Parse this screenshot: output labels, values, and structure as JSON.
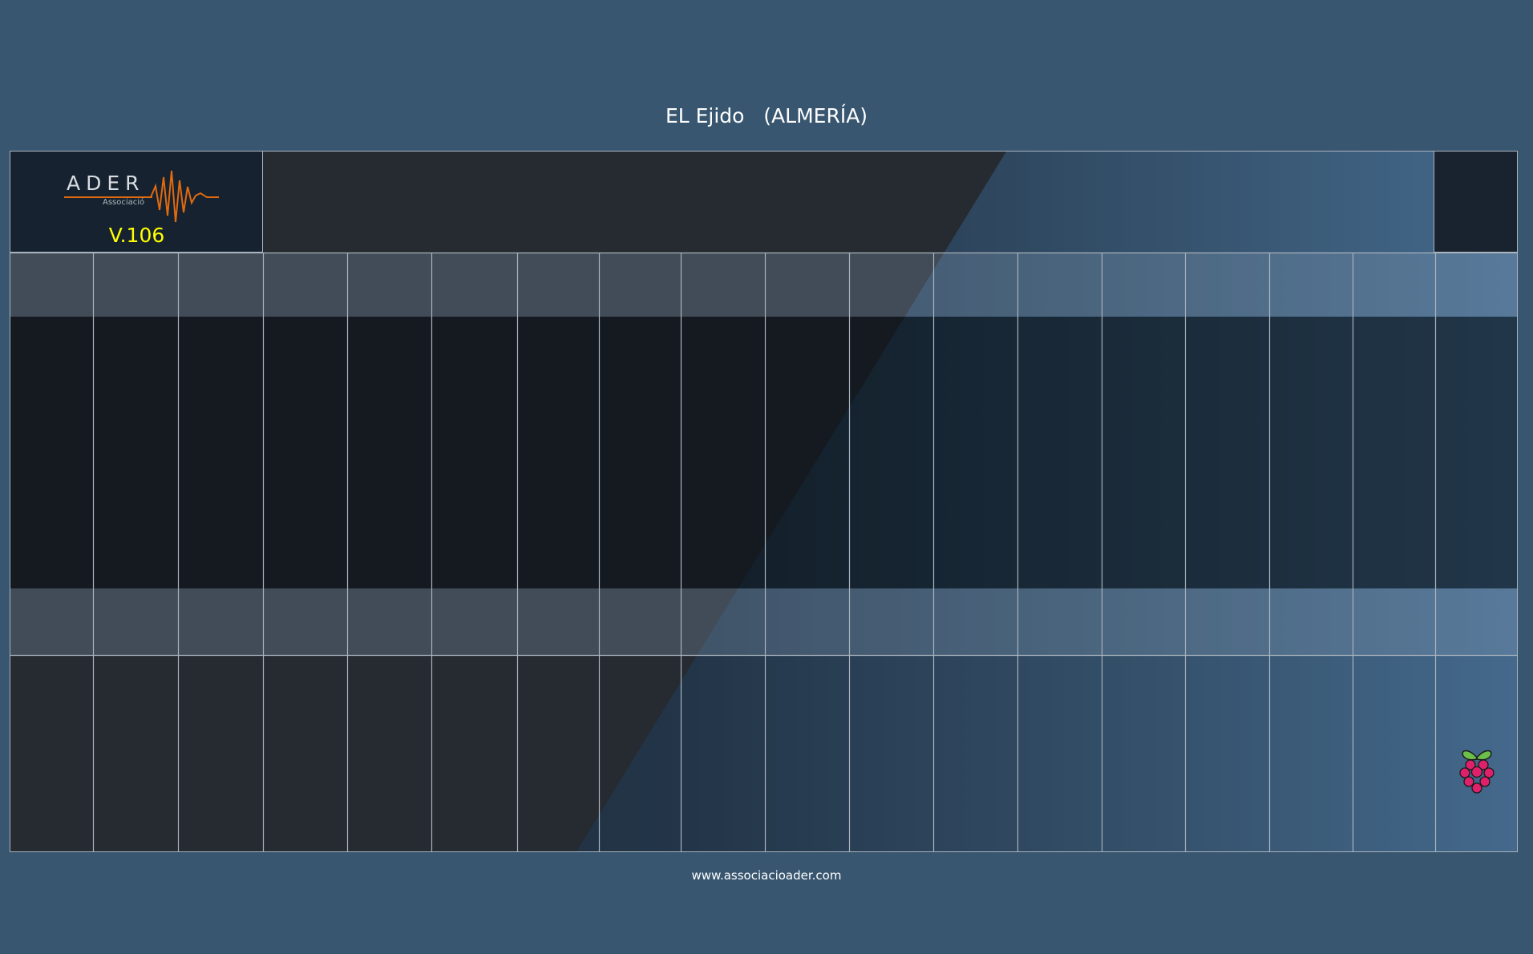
{
  "title": "EL Ejido   (ALMERÍA)",
  "logo": {
    "word": "ADER",
    "sub": "Associació"
  },
  "version": "V.106",
  "footer": {
    "url": "www.associacioader.com"
  },
  "icons": {
    "logo": "ader-logo-icon",
    "board": "raspberry-pi-icon"
  },
  "colors": {
    "version": "#ffff00",
    "logo_wave": "#e06a10",
    "background": "#385670"
  }
}
